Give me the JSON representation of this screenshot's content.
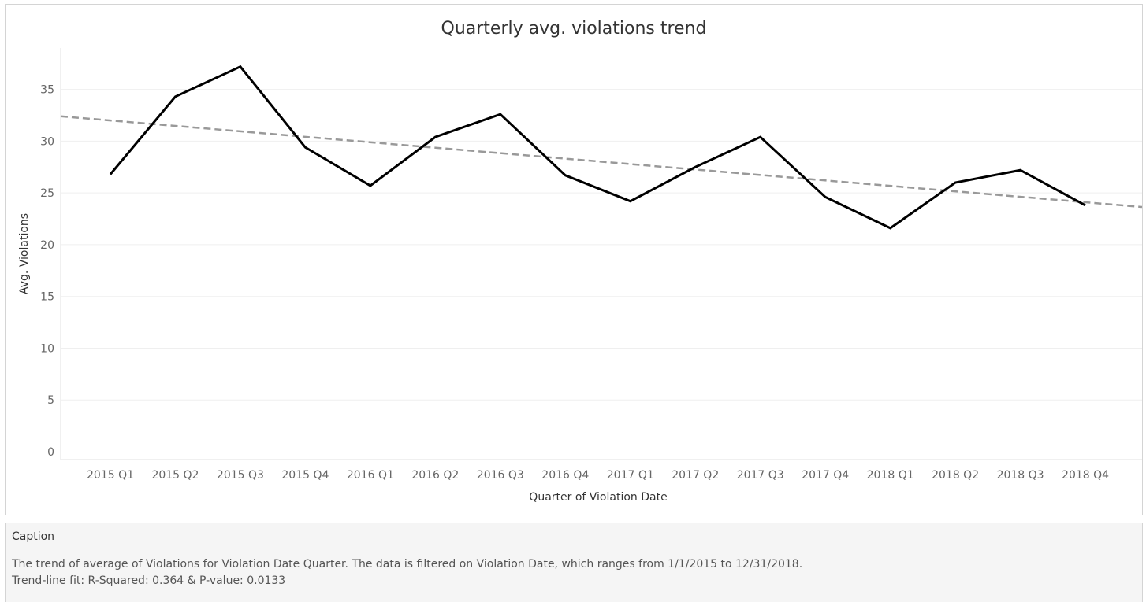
{
  "chart_data": {
    "type": "line",
    "title": "Quarterly avg. violations trend",
    "xlabel": "Quarter of Violation Date",
    "ylabel": "Avg. Violations",
    "categories": [
      "2015 Q1",
      "2015 Q2",
      "2015 Q3",
      "2015 Q4",
      "2016 Q1",
      "2016 Q2",
      "2016 Q3",
      "2016 Q4",
      "2017 Q1",
      "2017 Q2",
      "2017 Q3",
      "2017 Q4",
      "2018 Q1",
      "2018 Q2",
      "2018 Q3",
      "2018 Q4"
    ],
    "series": [
      {
        "values": [
          26.8,
          34.3,
          37.2,
          29.4,
          25.7,
          30.4,
          32.6,
          26.7,
          24.2,
          27.5,
          30.4,
          24.6,
          21.6,
          26.0,
          27.2,
          23.8
        ]
      }
    ],
    "trend_line": {
      "start": 32.0,
      "end": 24.1,
      "style": "dashed"
    },
    "yticks": [
      0,
      5,
      10,
      15,
      20,
      25,
      30,
      35
    ],
    "ylim": [
      0,
      39
    ],
    "grid": true,
    "legend": "none",
    "colors": {
      "series": "#000000",
      "trend": "#999999",
      "grid": "#efefef",
      "axis": "#e0e0e0"
    }
  },
  "caption": {
    "heading": "Caption",
    "line1": "The trend of average of Violations for Violation Date Quarter. The data is filtered on Violation Date, which ranges from 1/1/2015 to 12/31/2018.",
    "line2": "Trend-line fit: R-Squared: 0.364 & P-value: 0.0133"
  }
}
